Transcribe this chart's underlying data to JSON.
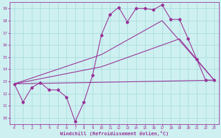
{
  "xlabel": "Windchill (Refroidissement éolien,°C)",
  "ylabel": "",
  "bg_color": "#cef0f0",
  "line_color": "#993399",
  "grid_color": "#aadddd",
  "axis_color": "#993399",
  "xlim": [
    -0.5,
    23.5
  ],
  "ylim": [
    9.5,
    19.5
  ],
  "xticks": [
    0,
    1,
    2,
    3,
    4,
    5,
    6,
    7,
    8,
    9,
    10,
    11,
    12,
    13,
    14,
    15,
    16,
    17,
    18,
    19,
    20,
    21,
    22,
    23
  ],
  "yticks": [
    10,
    11,
    12,
    13,
    14,
    15,
    16,
    17,
    18,
    19
  ],
  "lines": [
    {
      "x": [
        0,
        1,
        2,
        3,
        4,
        5,
        6,
        7,
        8,
        9,
        10,
        11,
        12,
        13,
        14,
        15,
        16,
        17,
        18,
        19,
        20,
        21,
        22,
        23
      ],
      "y": [
        12.8,
        11.3,
        12.5,
        12.9,
        12.3,
        12.3,
        11.7,
        9.7,
        11.3,
        13.5,
        16.8,
        18.5,
        19.1,
        17.9,
        19.0,
        19.0,
        18.9,
        19.3,
        18.1,
        18.1,
        16.5,
        14.8,
        13.1,
        13.1
      ],
      "marker": "D",
      "markersize": 2,
      "linewidth": 0.8
    },
    {
      "x": [
        0,
        23
      ],
      "y": [
        12.8,
        13.1
      ],
      "marker": null,
      "markersize": 0,
      "linewidth": 0.8
    },
    {
      "x": [
        0,
        10,
        19,
        23
      ],
      "y": [
        12.8,
        14.2,
        16.5,
        13.1
      ],
      "marker": null,
      "markersize": 0,
      "linewidth": 0.8
    },
    {
      "x": [
        0,
        10,
        17,
        23
      ],
      "y": [
        12.8,
        15.2,
        18.0,
        13.1
      ],
      "marker": null,
      "markersize": 0,
      "linewidth": 0.8
    }
  ]
}
